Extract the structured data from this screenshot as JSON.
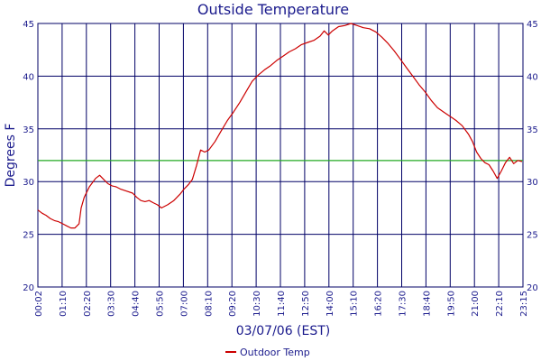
{
  "chart_data": {
    "type": "line",
    "title": "Outside Temperature",
    "xlabel": "03/07/06 (EST)",
    "ylabel": "Degrees F",
    "ylim": [
      20,
      45
    ],
    "y_ticks": [
      "20",
      "25",
      "30",
      "35",
      "40",
      "45"
    ],
    "x_ticks": [
      "00:02",
      "01:10",
      "02:20",
      "03:30",
      "04:40",
      "05:50",
      "07:00",
      "08:10",
      "09:20",
      "10:30",
      "11:40",
      "12:50",
      "14:00",
      "15:10",
      "16:20",
      "17:30",
      "18:40",
      "19:50",
      "21:00",
      "22:10",
      "23:15"
    ],
    "grid": true,
    "legend": "bottom-center",
    "reference_line": {
      "value": 32,
      "color": "#22aa22"
    },
    "series": [
      {
        "name": "Outdoor Temp",
        "color": "#cc0000",
        "values": [
          [
            0.0,
            27.3
          ],
          [
            0.2,
            27.0
          ],
          [
            0.4,
            26.8
          ],
          [
            0.6,
            26.5
          ],
          [
            0.8,
            26.3
          ],
          [
            1.0,
            26.2
          ],
          [
            1.2,
            26.0
          ],
          [
            1.4,
            25.8
          ],
          [
            1.6,
            25.6
          ],
          [
            1.8,
            25.6
          ],
          [
            2.0,
            26.0
          ],
          [
            2.1,
            27.5
          ],
          [
            2.25,
            28.5
          ],
          [
            2.5,
            29.5
          ],
          [
            2.8,
            30.3
          ],
          [
            3.0,
            30.6
          ],
          [
            3.2,
            30.2
          ],
          [
            3.4,
            29.8
          ],
          [
            3.6,
            29.6
          ],
          [
            3.8,
            29.5
          ],
          [
            4.0,
            29.3
          ],
          [
            4.3,
            29.1
          ],
          [
            4.6,
            28.9
          ],
          [
            4.8,
            28.5
          ],
          [
            5.0,
            28.2
          ],
          [
            5.2,
            28.1
          ],
          [
            5.4,
            28.2
          ],
          [
            5.6,
            28.0
          ],
          [
            5.8,
            27.8
          ],
          [
            6.0,
            27.5
          ],
          [
            6.3,
            27.8
          ],
          [
            6.6,
            28.2
          ],
          [
            6.9,
            28.8
          ],
          [
            7.1,
            29.3
          ],
          [
            7.3,
            29.7
          ],
          [
            7.5,
            30.2
          ],
          [
            7.7,
            31.5
          ],
          [
            7.9,
            33.0
          ],
          [
            8.1,
            32.8
          ],
          [
            8.3,
            33.0
          ],
          [
            8.6,
            33.8
          ],
          [
            8.9,
            34.8
          ],
          [
            9.2,
            35.8
          ],
          [
            9.5,
            36.6
          ],
          [
            9.8,
            37.5
          ],
          [
            10.1,
            38.5
          ],
          [
            10.4,
            39.5
          ],
          [
            10.7,
            40.1
          ],
          [
            11.0,
            40.6
          ],
          [
            11.3,
            41.0
          ],
          [
            11.6,
            41.5
          ],
          [
            11.9,
            41.9
          ],
          [
            12.2,
            42.3
          ],
          [
            12.5,
            42.6
          ],
          [
            12.8,
            43.0
          ],
          [
            13.1,
            43.2
          ],
          [
            13.4,
            43.4
          ],
          [
            13.7,
            43.8
          ],
          [
            13.9,
            44.3
          ],
          [
            14.1,
            43.9
          ],
          [
            14.3,
            44.3
          ],
          [
            14.6,
            44.7
          ],
          [
            14.9,
            44.8
          ],
          [
            15.2,
            45.0
          ],
          [
            15.5,
            44.8
          ],
          [
            15.8,
            44.6
          ],
          [
            16.1,
            44.5
          ],
          [
            16.4,
            44.2
          ],
          [
            16.7,
            43.7
          ],
          [
            17.0,
            43.1
          ],
          [
            17.3,
            42.4
          ],
          [
            17.6,
            41.6
          ],
          [
            17.9,
            40.8
          ],
          [
            18.2,
            40.0
          ],
          [
            18.5,
            39.2
          ],
          [
            18.8,
            38.5
          ],
          [
            19.1,
            37.7
          ],
          [
            19.4,
            37.0
          ],
          [
            19.7,
            36.6
          ],
          [
            20.0,
            36.2
          ],
          [
            20.3,
            35.8
          ],
          [
            20.6,
            35.3
          ],
          [
            20.9,
            34.5
          ],
          [
            21.1,
            33.8
          ],
          [
            21.3,
            32.8
          ],
          [
            21.5,
            32.2
          ],
          [
            21.7,
            31.8
          ],
          [
            21.9,
            31.6
          ],
          [
            22.1,
            31.0
          ],
          [
            22.3,
            30.3
          ],
          [
            22.5,
            31.0
          ],
          [
            22.7,
            31.8
          ],
          [
            22.9,
            32.3
          ],
          [
            23.1,
            31.7
          ],
          [
            23.3,
            32.0
          ],
          [
            23.5,
            31.9
          ]
        ]
      }
    ]
  }
}
